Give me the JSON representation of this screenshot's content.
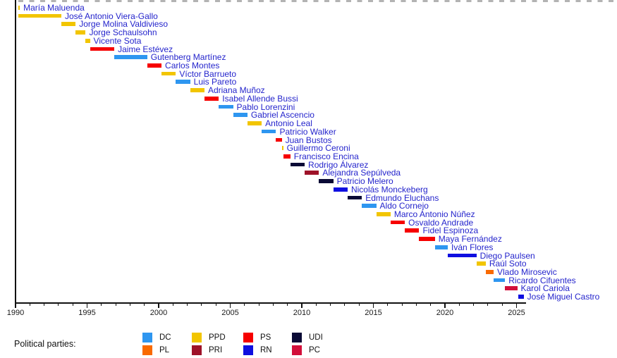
{
  "chart_data": {
    "type": "timeline",
    "x_axis": {
      "min": 1990,
      "max": 2025.6,
      "major_ticks": [
        1990,
        1995,
        2000,
        2005,
        2010,
        2015,
        2020,
        2025
      ],
      "minor_tick_interval": 1,
      "grid": false
    },
    "parties": {
      "DC": "#2E96F0",
      "PPD": "#F2C500",
      "PS": "#F60000",
      "UDI": "#0A0A35",
      "PL": "#F96A00",
      "PRI": "#9E1229",
      "RN": "#0F0FE0",
      "PC": "#D20F3A"
    },
    "entries": [
      {
        "name": "María Maluenda",
        "party": "PPD",
        "start": 1990.2,
        "end": 1990.3
      },
      {
        "name": "José Antonio Viera-Gallo",
        "party": "PPD",
        "start": 1990.2,
        "end": 1993.2
      },
      {
        "name": "Jorge Molina Valdivieso",
        "party": "PPD",
        "start": 1993.2,
        "end": 1994.2
      },
      {
        "name": "Jorge Schaulsohn",
        "party": "PPD",
        "start": 1994.2,
        "end": 1994.9
      },
      {
        "name": "Vicente Sota",
        "party": "PPD",
        "start": 1994.9,
        "end": 1995.2
      },
      {
        "name": "Jaime Estévez",
        "party": "PS",
        "start": 1995.2,
        "end": 1996.9
      },
      {
        "name": "Gutenberg Martínez",
        "party": "DC",
        "start": 1996.9,
        "end": 1999.2
      },
      {
        "name": "Carlos Montes",
        "party": "PS",
        "start": 1999.2,
        "end": 2000.2
      },
      {
        "name": "Víctor Barrueto",
        "party": "PPD",
        "start": 2000.2,
        "end": 2001.2
      },
      {
        "name": "Luis Pareto",
        "party": "DC",
        "start": 2001.2,
        "end": 2002.2
      },
      {
        "name": "Adriana Muñoz",
        "party": "PPD",
        "start": 2002.2,
        "end": 2003.2
      },
      {
        "name": "Isabel Allende Bussi",
        "party": "PS",
        "start": 2003.2,
        "end": 2004.2
      },
      {
        "name": "Pablo Lorenzini",
        "party": "DC",
        "start": 2004.2,
        "end": 2005.2
      },
      {
        "name": "Gabriel Ascencio",
        "party": "DC",
        "start": 2005.2,
        "end": 2006.2
      },
      {
        "name": "Antonio Leal",
        "party": "PPD",
        "start": 2006.2,
        "end": 2007.2
      },
      {
        "name": "Patricio Walker",
        "party": "DC",
        "start": 2007.2,
        "end": 2008.2
      },
      {
        "name": "Juan Bustos",
        "party": "PS",
        "start": 2008.2,
        "end": 2008.6
      },
      {
        "name": "Guillermo Ceroni",
        "party": "PPD",
        "start": 2008.6,
        "end": 2008.7
      },
      {
        "name": "Francisco Encina",
        "party": "PS",
        "start": 2008.7,
        "end": 2009.2
      },
      {
        "name": "Rodrigo Álvarez",
        "party": "UDI",
        "start": 2009.2,
        "end": 2010.2
      },
      {
        "name": "Alejandra Sepúlveda",
        "party": "PRI",
        "start": 2010.2,
        "end": 2011.2
      },
      {
        "name": "Patricio Melero",
        "party": "UDI",
        "start": 2011.2,
        "end": 2012.2
      },
      {
        "name": "Nicolás Monckeberg",
        "party": "RN",
        "start": 2012.2,
        "end": 2013.2
      },
      {
        "name": "Edmundo Eluchans",
        "party": "UDI",
        "start": 2013.2,
        "end": 2014.2
      },
      {
        "name": "Aldo Cornejo",
        "party": "DC",
        "start": 2014.2,
        "end": 2015.2
      },
      {
        "name": "Marco Antonio Núñez",
        "party": "PPD",
        "start": 2015.2,
        "end": 2016.2
      },
      {
        "name": "Osvaldo Andrade",
        "party": "PS",
        "start": 2016.2,
        "end": 2017.2
      },
      {
        "name": "Fidel Espinoza",
        "party": "PS",
        "start": 2017.2,
        "end": 2018.2
      },
      {
        "name": "Maya Fernández",
        "party": "PS",
        "start": 2018.2,
        "end": 2019.3
      },
      {
        "name": "Iván Flores",
        "party": "DC",
        "start": 2019.3,
        "end": 2020.2
      },
      {
        "name": "Diego Paulsen",
        "party": "RN",
        "start": 2020.2,
        "end": 2022.2
      },
      {
        "name": "Raúl Soto",
        "party": "PPD",
        "start": 2022.2,
        "end": 2022.85
      },
      {
        "name": "Vlado Mirosevic",
        "party": "PL",
        "start": 2022.85,
        "end": 2023.4
      },
      {
        "name": "Ricardo Cifuentes",
        "party": "DC",
        "start": 2023.4,
        "end": 2024.2
      },
      {
        "name": "Karol Cariola",
        "party": "PC",
        "start": 2024.2,
        "end": 2025.05
      },
      {
        "name": "José Miguel Castro",
        "party": "RN",
        "start": 2025.1,
        "end": 2025.5
      }
    ]
  },
  "legend": {
    "label": "Political parties:",
    "items": [
      {
        "code": "DC",
        "color": "#2E96F0"
      },
      {
        "code": "PL",
        "color": "#F96A00"
      },
      {
        "code": "PPD",
        "color": "#F2C500"
      },
      {
        "code": "PRI",
        "color": "#9E1229"
      },
      {
        "code": "PS",
        "color": "#F60000"
      },
      {
        "code": "RN",
        "color": "#0F0FE0"
      },
      {
        "code": "UDI",
        "color": "#0A0A35"
      },
      {
        "code": "PC",
        "color": "#D20F3A"
      }
    ]
  },
  "styles": {
    "name_label_color": "#2424CC",
    "axis_color": "#111111",
    "tick_label_color": "#1A1A1A"
  }
}
